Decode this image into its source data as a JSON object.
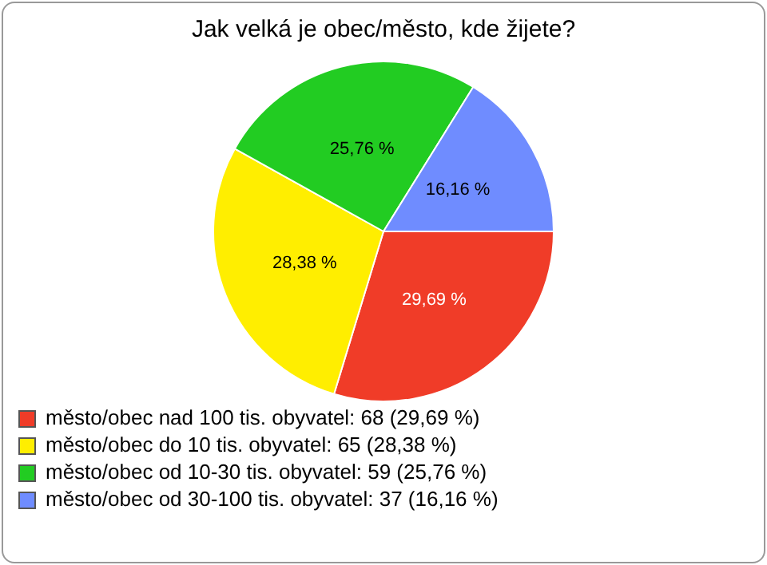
{
  "chart_data": {
    "type": "pie",
    "title": "Jak velká je obec/město, kde žijete?",
    "categories": [
      "město/obec nad 100 tis. obyvatel: 68 (29,69 %)",
      "město/obec do 10 tis. obyvatel: 65 (28,38 %)",
      "město/obec od 10-30 tis. obyvatel: 59 (25,76 %)",
      "město/obec od 30-100 tis. obyvatel: 37 (16,16 %)"
    ],
    "values": [
      29.69,
      28.38,
      25.76,
      16.16
    ],
    "value_labels": [
      "29,69 %",
      "28,38 %",
      "25,76 %",
      "16,16 %"
    ],
    "colors": [
      "#f03c28",
      "#ffee00",
      "#22cc22",
      "#6f8cff"
    ],
    "legend": "bottom left"
  }
}
